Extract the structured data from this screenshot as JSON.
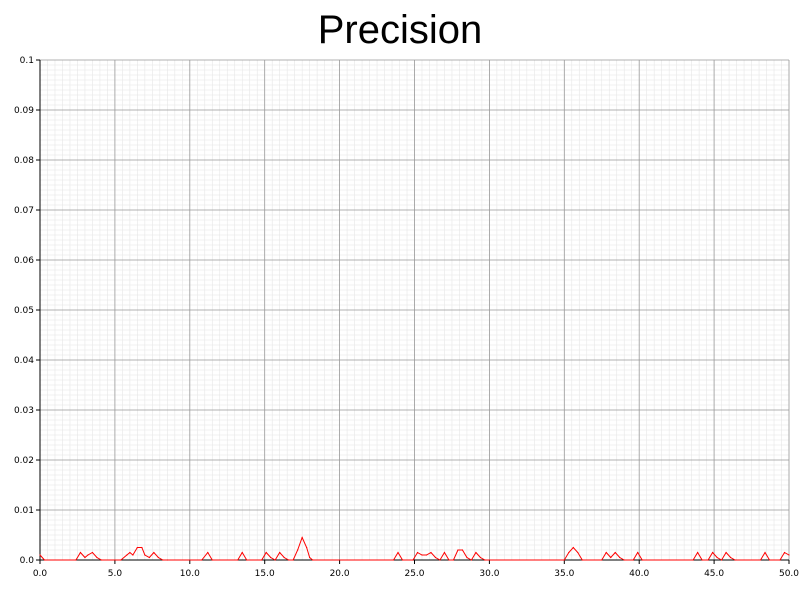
{
  "chart_data": {
    "type": "line",
    "title": "Precision",
    "xlabel": "",
    "ylabel": "",
    "xlim": [
      0,
      50
    ],
    "ylim": [
      0,
      0.1
    ],
    "grid": true,
    "x_ticks": [
      "0.0",
      "5.0",
      "10.0",
      "15.0",
      "20.0",
      "25.0",
      "30.0",
      "35.0",
      "40.0",
      "45.0",
      "50.0"
    ],
    "y_ticks": [
      "0.0",
      "0.01",
      "0.02",
      "0.03",
      "0.04",
      "0.05",
      "0.06",
      "0.07",
      "0.08",
      "0.09",
      "0.1"
    ],
    "line_color": "#ff0000",
    "series": [
      {
        "x": [
          0.0,
          0.3,
          2.4,
          2.7,
          3.0,
          3.2,
          3.5,
          3.8,
          4.1,
          5.4,
          5.8,
          6.0,
          6.2,
          6.5,
          6.8,
          7.0,
          7.3,
          7.6,
          7.9,
          8.2,
          8.5,
          10.8,
          11.2,
          11.5,
          13.2,
          13.5,
          13.8,
          14.8,
          15.1,
          15.4,
          15.7,
          16.0,
          16.3,
          16.6,
          16.9,
          17.2,
          17.5,
          17.8,
          18.0,
          18.2,
          23.6,
          23.9,
          24.2,
          24.9,
          25.2,
          25.5,
          25.8,
          26.1,
          26.4,
          26.7,
          27.0,
          27.3,
          27.6,
          27.9,
          28.2,
          28.5,
          28.8,
          29.1,
          29.4,
          29.7,
          35.0,
          35.3,
          35.6,
          35.9,
          36.2,
          37.5,
          37.8,
          38.1,
          38.4,
          38.7,
          39.0,
          39.6,
          39.9,
          40.2,
          43.6,
          43.9,
          44.2,
          44.6,
          44.9,
          45.2,
          45.5,
          45.8,
          46.1,
          46.4,
          48.1,
          48.4,
          48.7,
          49.4,
          49.7,
          50.0
        ],
        "y": [
          0.001,
          0.0,
          0.0,
          0.0015,
          0.0005,
          0.001,
          0.0015,
          0.0005,
          0.0,
          0.0,
          0.001,
          0.0015,
          0.001,
          0.0025,
          0.0025,
          0.001,
          0.0005,
          0.0015,
          0.0005,
          0.0,
          0.0,
          0.0,
          0.0015,
          0.0,
          0.0,
          0.0015,
          0.0,
          0.0,
          0.0015,
          0.0005,
          0.0,
          0.0015,
          0.0005,
          0.0,
          0.0,
          0.002,
          0.0045,
          0.0025,
          0.0005,
          0.0,
          0.0,
          0.0015,
          0.0,
          0.0,
          0.0015,
          0.001,
          0.001,
          0.0015,
          0.0005,
          0.0,
          0.0015,
          0.0,
          0.0,
          0.002,
          0.002,
          0.0005,
          0.0,
          0.0015,
          0.0005,
          0.0,
          0.0,
          0.0015,
          0.0025,
          0.0015,
          0.0,
          0.0,
          0.0015,
          0.0005,
          0.0015,
          0.0005,
          0.0,
          0.0,
          0.0015,
          0.0,
          0.0,
          0.0015,
          0.0,
          0.0,
          0.0015,
          0.0005,
          0.0,
          0.0015,
          0.0005,
          0.0,
          0.0,
          0.0015,
          0.0,
          0.0,
          0.0015,
          0.001
        ]
      }
    ]
  }
}
